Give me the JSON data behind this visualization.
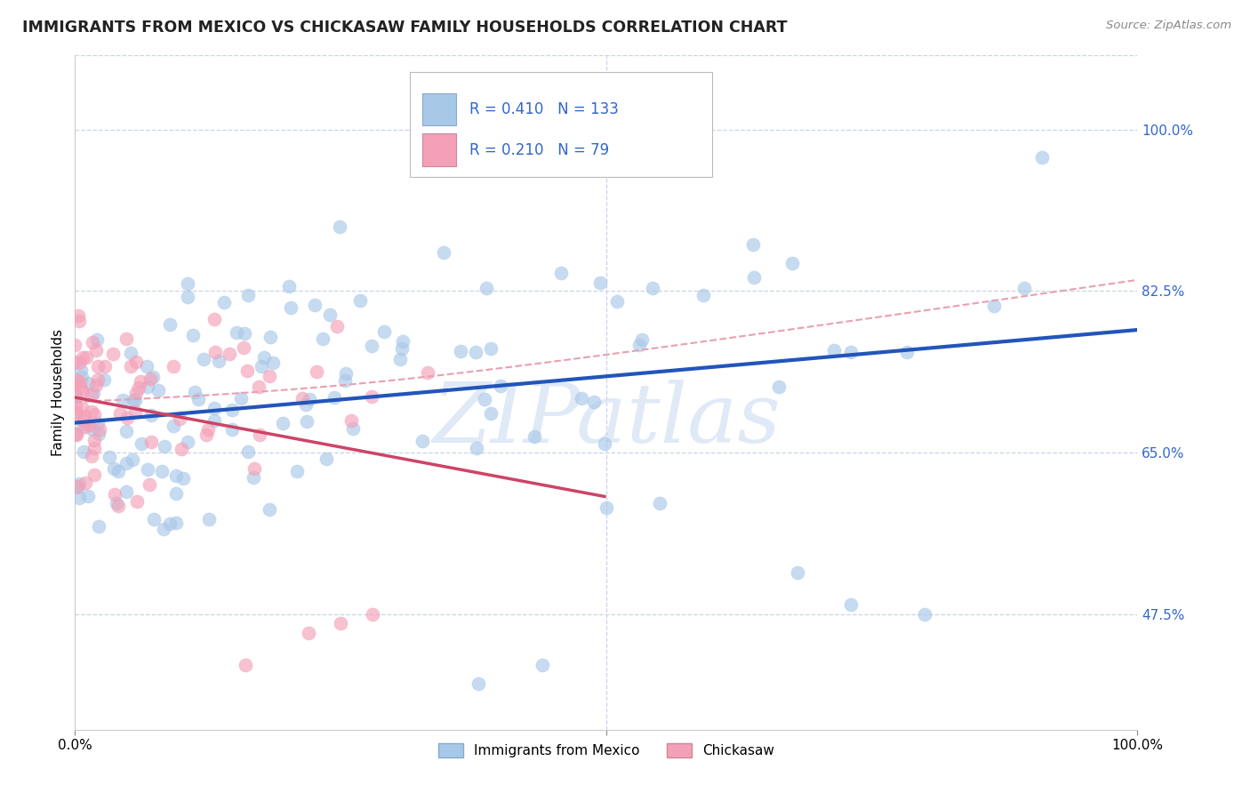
{
  "title": "IMMIGRANTS FROM MEXICO VS CHICKASAW FAMILY HOUSEHOLDS CORRELATION CHART",
  "source": "Source: ZipAtlas.com",
  "ylabel": "Family Households",
  "y_ticks": [
    "47.5%",
    "65.0%",
    "82.5%",
    "100.0%"
  ],
  "y_tick_vals": [
    0.475,
    0.65,
    0.825,
    1.0
  ],
  "legend_entry1": {
    "label": "Immigrants from Mexico",
    "R": "0.410",
    "N": "133"
  },
  "legend_entry2": {
    "label": "Chickasaw",
    "R": "0.210",
    "N": "79"
  },
  "blue_scatter_color": "#a8c8e8",
  "pink_scatter_color": "#f4a0b8",
  "blue_line_color": "#2255bb",
  "pink_line_color": "#cc4466",
  "conf_line_color": "#e8a0b0",
  "background_color": "#ffffff",
  "grid_color": "#c8d4e8",
  "watermark_text": "ZIPatlas",
  "watermark_color": "#c8d8f0",
  "legend_blue_fill": "#a8c8e8",
  "legend_pink_fill": "#f4a0b8",
  "y_label_color": "#3366cc",
  "x_min": 0.0,
  "x_max": 1.0,
  "y_min": 0.35,
  "y_max": 1.08
}
